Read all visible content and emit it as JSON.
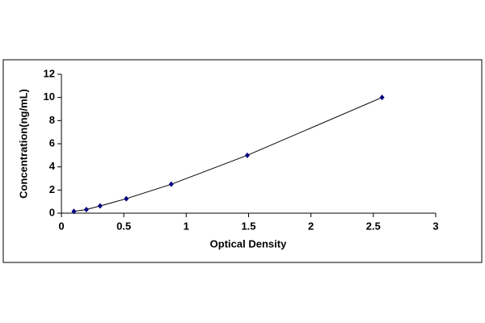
{
  "chart_data": {
    "type": "scatter",
    "x_label": "Optical Density",
    "y_label": "Concentration(ng/mL)",
    "x": [
      0.1,
      0.2,
      0.31,
      0.52,
      0.88,
      1.49,
      2.57
    ],
    "values": [
      0.156,
      0.312,
      0.625,
      1.25,
      2.5,
      5,
      10
    ],
    "color": "#000080",
    "line_color": "#000000",
    "trend_line": true,
    "xlim": [
      0,
      3
    ],
    "xticks": [
      0,
      0.5,
      1,
      1.5,
      2,
      2.5,
      3
    ],
    "ylim": [
      0,
      12
    ],
    "yticks": [
      0,
      2,
      4,
      6,
      8,
      10,
      12
    ],
    "grid": false
  }
}
